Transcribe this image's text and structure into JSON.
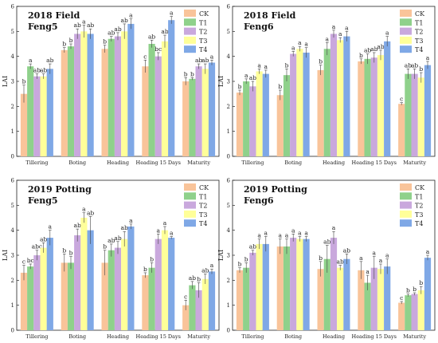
{
  "figure": {
    "series_colors": {
      "CK": "#f9c49a",
      "T1": "#8fd18b",
      "T2": "#c9a8dd",
      "T3": "#ffff99",
      "T4": "#7fa8e6"
    }
  },
  "chart_data": [
    {
      "type": "bar",
      "title_line1": "2018 Field",
      "title_line2": "Feng5",
      "ylabel": "LAI",
      "ylim": [
        0,
        6
      ],
      "yticks": [
        "0",
        "1",
        "2",
        "3",
        "4",
        "5",
        "6"
      ],
      "categories": [
        "Tillering",
        "Boting",
        "Heading",
        "Heading 15 Days",
        "Maturity"
      ],
      "legend_position": "top-right",
      "series": [
        {
          "name": "CK",
          "values": [
            2.5,
            4.25,
            4.3,
            3.6,
            3.0
          ],
          "errors": [
            0.35,
            0.1,
            0.15,
            0.25,
            0.15
          ],
          "letters": [
            "b",
            "b",
            "b",
            "c",
            "b"
          ]
        },
        {
          "name": "T1",
          "values": [
            3.6,
            4.4,
            4.7,
            4.5,
            3.1
          ],
          "errors": [
            0.1,
            0.1,
            0.1,
            0.15,
            0.05
          ],
          "letters": [
            "a",
            "b",
            "ab",
            "ab",
            "b"
          ]
        },
        {
          "name": "T2",
          "values": [
            3.2,
            4.9,
            4.8,
            4.0,
            3.6
          ],
          "errors": [
            0.1,
            0.2,
            0.15,
            0.15,
            0.1
          ],
          "letters": [
            "ab",
            "ab",
            "ab",
            "bc",
            "ab"
          ]
        },
        {
          "name": "T3",
          "values": [
            3.2,
            5.0,
            5.0,
            4.6,
            3.5
          ],
          "errors": [
            0.1,
            0.25,
            0.3,
            0.25,
            0.2
          ],
          "letters": [
            "ab",
            "a",
            "ab",
            "ab",
            "ab"
          ]
        },
        {
          "name": "T4",
          "values": [
            3.5,
            4.9,
            5.3,
            5.45,
            3.75
          ],
          "errors": [
            0.2,
            0.2,
            0.2,
            0.15,
            0.1
          ],
          "letters": [
            "ab",
            "ab",
            "a",
            "a",
            "a"
          ]
        }
      ]
    },
    {
      "type": "bar",
      "title_line1": "2018 Field",
      "title_line2": "Feng6",
      "ylabel": "LAI",
      "ylim": [
        0,
        6
      ],
      "yticks": [
        "0",
        "1",
        "2",
        "3",
        "4",
        "5",
        "6"
      ],
      "categories": [
        "Tillering",
        "Boting",
        "Heading",
        "Heading 15 Days",
        "Maturity"
      ],
      "legend_position": "top-right",
      "series": [
        {
          "name": "CK",
          "values": [
            2.55,
            2.45,
            3.45,
            3.8,
            2.1
          ],
          "errors": [
            0.1,
            0.2,
            0.2,
            0.1,
            0.05
          ],
          "letters": [
            "b",
            "b",
            "b",
            "b",
            "c"
          ]
        },
        {
          "name": "T1",
          "values": [
            3.0,
            3.25,
            4.3,
            3.9,
            3.3
          ],
          "errors": [
            0.1,
            0.25,
            0.25,
            0.2,
            0.2
          ],
          "letters": [
            "a",
            "b",
            "a",
            "ab",
            "ab"
          ]
        },
        {
          "name": "T2",
          "values": [
            2.8,
            4.1,
            4.9,
            3.95,
            3.3
          ],
          "errors": [
            0.2,
            0.1,
            0.15,
            0.2,
            0.2
          ],
          "letters": [
            "ab",
            "a",
            "a",
            "ab",
            "ab"
          ]
        },
        {
          "name": "T3",
          "values": [
            3.4,
            4.3,
            4.65,
            4.05,
            3.15
          ],
          "errors": [
            0.1,
            0.1,
            0.1,
            0.2,
            0.2
          ],
          "letters": [
            "a",
            "a",
            "a",
            "ab",
            "b"
          ]
        },
        {
          "name": "T4",
          "values": [
            3.3,
            4.15,
            4.8,
            4.6,
            3.65
          ],
          "errors": [
            0.15,
            0.2,
            0.2,
            0.2,
            0.15
          ],
          "letters": [
            "a",
            "a",
            "a",
            "a",
            "a"
          ]
        }
      ]
    },
    {
      "type": "bar",
      "title_line1": "2019 Potting",
      "title_line2": "Feng5",
      "ylabel": "LAI",
      "ylim": [
        0,
        6
      ],
      "yticks": [
        "0",
        "1",
        "2",
        "3",
        "4",
        "5",
        "6"
      ],
      "categories": [
        "Tillering",
        "Boting",
        "Heading",
        "Heading 15 Days",
        "Maturity"
      ],
      "legend_position": "top-right",
      "series": [
        {
          "name": "CK",
          "values": [
            2.3,
            2.7,
            2.7,
            2.2,
            1.0
          ],
          "errors": [
            0.3,
            0.35,
            0.5,
            0.1,
            0.2
          ],
          "letters": [
            "c",
            "b",
            "b",
            "b",
            "c"
          ]
        },
        {
          "name": "T1",
          "values": [
            2.55,
            2.7,
            3.2,
            2.5,
            1.8
          ],
          "errors": [
            0.1,
            0.25,
            0.25,
            0.2,
            0.15
          ],
          "letters": [
            "bc",
            "b",
            "ab",
            "b",
            "ab"
          ]
        },
        {
          "name": "T2",
          "values": [
            3.0,
            3.8,
            3.3,
            3.65,
            1.6
          ],
          "errors": [
            0.2,
            0.25,
            0.25,
            0.2,
            0.3
          ],
          "letters": [
            "abc",
            "ab",
            "ab",
            "a",
            "b"
          ]
        },
        {
          "name": "T3",
          "values": [
            3.3,
            4.5,
            3.65,
            4.0,
            2.05
          ],
          "errors": [
            0.2,
            0.2,
            0.3,
            0.15,
            0.2
          ],
          "letters": [
            "ab",
            "a",
            "ab",
            "a",
            "ab"
          ]
        },
        {
          "name": "T4",
          "values": [
            3.7,
            4.0,
            4.15,
            3.7,
            2.35
          ],
          "errors": [
            0.3,
            0.55,
            0.1,
            0.05,
            0.1
          ],
          "letters": [
            "a",
            "ab",
            "a",
            "a",
            "a"
          ]
        }
      ]
    },
    {
      "type": "bar",
      "title_line1": "2019 Potting",
      "title_line2": "Feng6",
      "ylabel": "LAI",
      "ylim": [
        0,
        6
      ],
      "yticks": [
        "0",
        "1",
        "2",
        "3",
        "4",
        "5",
        "6"
      ],
      "categories": [
        "Tillering",
        "Boting",
        "Heading",
        "Heading 15 Days",
        "Maturity"
      ],
      "legend_position": "top-right",
      "series": [
        {
          "name": "CK",
          "values": [
            2.4,
            3.35,
            2.45,
            2.4,
            1.1
          ],
          "errors": [
            0.1,
            0.3,
            0.3,
            0.35,
            0.05
          ],
          "letters": [
            "b",
            "a",
            "b",
            "a",
            "c"
          ]
        },
        {
          "name": "T1",
          "values": [
            2.5,
            3.35,
            2.85,
            1.9,
            1.4
          ],
          "errors": [
            0.2,
            0.3,
            0.55,
            0.3,
            0.05
          ],
          "letters": [
            "b",
            "a",
            "ab",
            "a",
            "b"
          ]
        },
        {
          "name": "T2",
          "values": [
            3.1,
            3.7,
            3.7,
            2.5,
            1.45
          ],
          "errors": [
            0.1,
            0.15,
            0.25,
            0.45,
            0.05
          ],
          "letters": [
            "ab",
            "a",
            "a",
            "a",
            "b"
          ]
        },
        {
          "name": "T3",
          "values": [
            3.45,
            3.65,
            2.5,
            2.45,
            1.6
          ],
          "errors": [
            0.2,
            0.1,
            0.1,
            0.2,
            0.15
          ],
          "letters": [
            "a",
            "a",
            "ab",
            "a",
            "b"
          ]
        },
        {
          "name": "T4",
          "values": [
            3.45,
            3.65,
            2.85,
            2.55,
            2.9
          ],
          "errors": [
            0.3,
            0.1,
            0.2,
            0.3,
            0.1
          ],
          "letters": [
            "a",
            "a",
            "ab",
            "a",
            "a"
          ]
        }
      ]
    }
  ]
}
